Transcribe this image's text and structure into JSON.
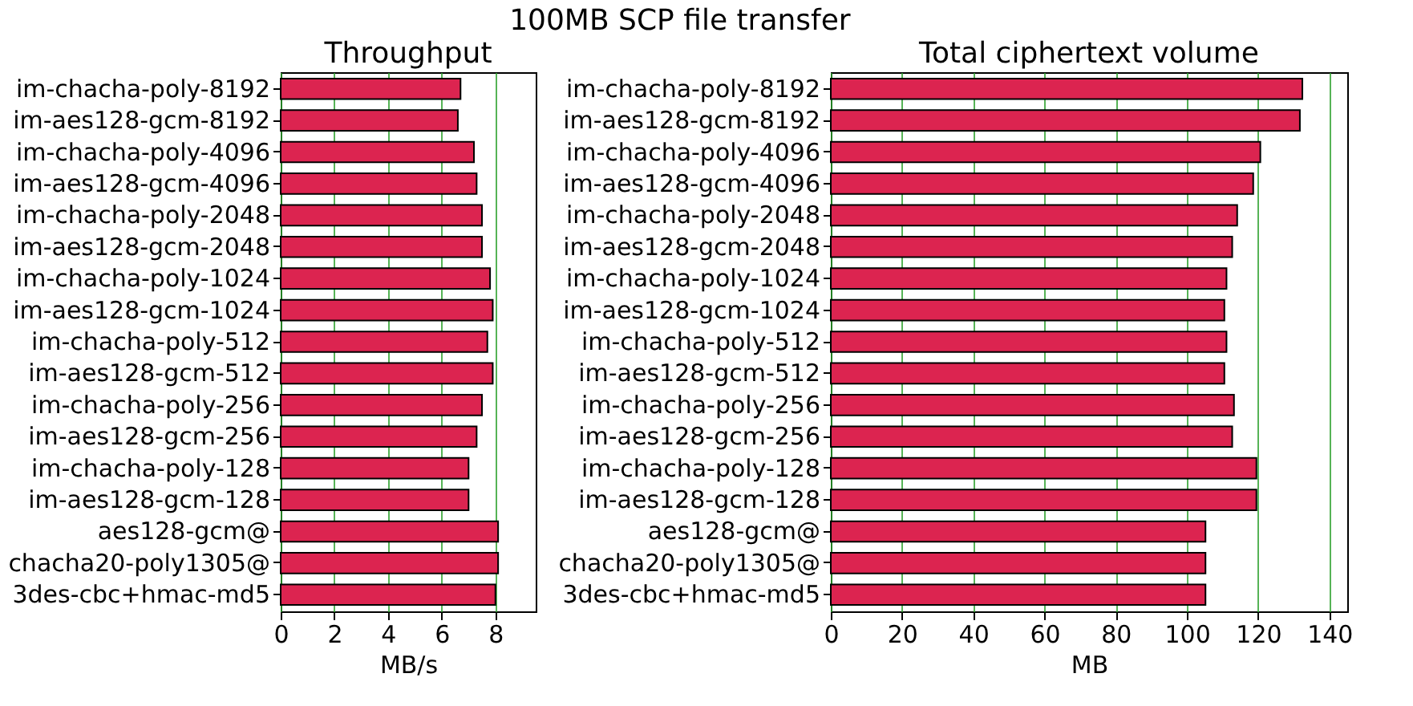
{
  "chart_data": [
    {
      "type": "bar",
      "orientation": "horizontal",
      "title": "Throughput",
      "xlabel": "MB/s",
      "annotations": [
        "100MB SCP file transfer"
      ],
      "categories": [
        "im-chacha-poly-8192",
        "im-aes128-gcm-8192",
        "im-chacha-poly-4096",
        "im-aes128-gcm-4096",
        "im-chacha-poly-2048",
        "im-aes128-gcm-2048",
        "im-chacha-poly-1024",
        "im-aes128-gcm-1024",
        "im-chacha-poly-512",
        "im-aes128-gcm-512",
        "im-chacha-poly-256",
        "im-aes128-gcm-256",
        "im-chacha-poly-128",
        "im-aes128-gcm-128",
        "aes128-gcm@",
        "chacha20-poly1305@",
        "3des-cbc+hmac-md5"
      ],
      "values": [
        6.7,
        6.6,
        7.2,
        7.3,
        7.5,
        7.5,
        7.8,
        7.9,
        7.7,
        7.9,
        7.5,
        7.3,
        7.0,
        7.0,
        8.1,
        8.1,
        8.0
      ],
      "color": "#dc2450",
      "xlim": [
        0,
        9.5
      ],
      "xticks": [
        0,
        2,
        4,
        6,
        8
      ],
      "grid": "x"
    },
    {
      "type": "bar",
      "orientation": "horizontal",
      "title": "Total ciphertext volume",
      "xlabel": "MB",
      "categories": [
        "im-chacha-poly-8192",
        "im-aes128-gcm-8192",
        "im-chacha-poly-4096",
        "im-aes128-gcm-4096",
        "im-chacha-poly-2048",
        "im-aes128-gcm-2048",
        "im-chacha-poly-1024",
        "im-aes128-gcm-1024",
        "im-chacha-poly-512",
        "im-aes128-gcm-512",
        "im-chacha-poly-256",
        "im-aes128-gcm-256",
        "im-chacha-poly-128",
        "im-aes128-gcm-128",
        "aes128-gcm@",
        "chacha20-poly1305@",
        "3des-cbc+hmac-md5"
      ],
      "values": [
        132.4,
        131.7,
        120.6,
        118.6,
        114.1,
        112.7,
        111.1,
        110.5,
        111.1,
        110.5,
        113.2,
        112.7,
        119.5,
        119.5,
        105.2,
        105.2,
        105.2
      ],
      "color": "#dc2450",
      "xlim": [
        0,
        145
      ],
      "xticks": [
        0,
        20,
        40,
        60,
        80,
        100,
        120,
        140
      ],
      "grid": "x"
    }
  ]
}
